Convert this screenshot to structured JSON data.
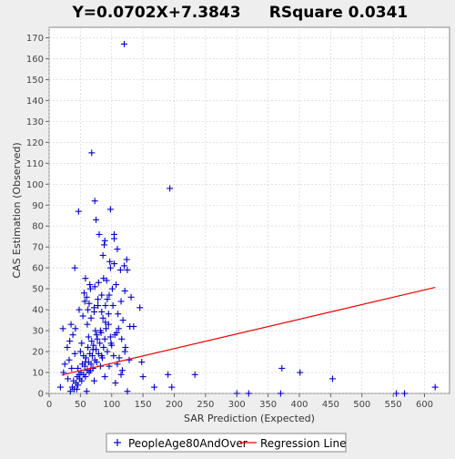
{
  "chart_data": {
    "type": "scatter",
    "title_left": "Y=0.0702X+7.3843",
    "title_right": "RSquare 0.0341",
    "xlabel": "SAR Prediction (Expected)",
    "ylabel": "CAS Estimation (Observed)",
    "xlim": [
      0,
      640
    ],
    "ylim": [
      0,
      175
    ],
    "xticks": [
      0,
      50,
      100,
      150,
      200,
      250,
      300,
      350,
      400,
      450,
      500,
      550,
      600
    ],
    "yticks": [
      0,
      10,
      20,
      30,
      40,
      50,
      60,
      70,
      80,
      90,
      100,
      110,
      120,
      130,
      140,
      150,
      160,
      170
    ],
    "grid": true,
    "legend_position": "bottom",
    "colors": {
      "points": "#0000cc",
      "regression": "#ee0000",
      "plot_bg": "#ffffff",
      "grid": "#d0d0d0"
    },
    "series": [
      {
        "name": "PeopleAge80AndOver",
        "marker": "plus",
        "points": [
          [
            120,
            167
          ],
          [
            68,
            115
          ],
          [
            193,
            98
          ],
          [
            73,
            92
          ],
          [
            98,
            88
          ],
          [
            47,
            87
          ],
          [
            75,
            83
          ],
          [
            80,
            76
          ],
          [
            104,
            76
          ],
          [
            104,
            74
          ],
          [
            89,
            73
          ],
          [
            88,
            71
          ],
          [
            109,
            69
          ],
          [
            86,
            66
          ],
          [
            97,
            63
          ],
          [
            124,
            64
          ],
          [
            120,
            61
          ],
          [
            104,
            62
          ],
          [
            41,
            60
          ],
          [
            98,
            60
          ],
          [
            114,
            59
          ],
          [
            125,
            59
          ],
          [
            58,
            55
          ],
          [
            87,
            55
          ],
          [
            92,
            54
          ],
          [
            79,
            53
          ],
          [
            107,
            52
          ],
          [
            73,
            51
          ],
          [
            66,
            50
          ],
          [
            101,
            50
          ],
          [
            121,
            49
          ],
          [
            56,
            48
          ],
          [
            84,
            47
          ],
          [
            60,
            46
          ],
          [
            131,
            46
          ],
          [
            93,
            45
          ],
          [
            115,
            44
          ],
          [
            64,
            43
          ],
          [
            78,
            42
          ],
          [
            102,
            42
          ],
          [
            145,
            41
          ],
          [
            48,
            40
          ],
          [
            72,
            39
          ],
          [
            110,
            38
          ],
          [
            54,
            37
          ],
          [
            86,
            36
          ],
          [
            118,
            35
          ],
          [
            35,
            33
          ],
          [
            61,
            33
          ],
          [
            95,
            33
          ],
          [
            135,
            32
          ],
          [
            129,
            32
          ],
          [
            42,
            31
          ],
          [
            74,
            30
          ],
          [
            22,
            31
          ],
          [
            108,
            29
          ],
          [
            38,
            28
          ],
          [
            63,
            27
          ],
          [
            89,
            26
          ],
          [
            33,
            25
          ],
          [
            52,
            24
          ],
          [
            100,
            23
          ],
          [
            29,
            22
          ],
          [
            70,
            21
          ],
          [
            121,
            20
          ],
          [
            41,
            19
          ],
          [
            84,
            18
          ],
          [
            112,
            17
          ],
          [
            32,
            16
          ],
          [
            58,
            15
          ],
          [
            128,
            16
          ],
          [
            148,
            15
          ],
          [
            25,
            14
          ],
          [
            96,
            13
          ],
          [
            36,
            12
          ],
          [
            66,
            11
          ],
          [
            117,
            11
          ],
          [
            23,
            10
          ],
          [
            48,
            9
          ],
          [
            89,
            8
          ],
          [
            150,
            8
          ],
          [
            30,
            7
          ],
          [
            72,
            6
          ],
          [
            106,
            5
          ],
          [
            18,
            3
          ],
          [
            44,
            2
          ],
          [
            60,
            1
          ],
          [
            125,
            1
          ],
          [
            168,
            3
          ],
          [
            190,
            9
          ],
          [
            196,
            3
          ],
          [
            233,
            9
          ],
          [
            372,
            12
          ],
          [
            401,
            10
          ],
          [
            453,
            7
          ],
          [
            300,
            0
          ],
          [
            319,
            0
          ],
          [
            370,
            0
          ],
          [
            555,
            0
          ],
          [
            568,
            0
          ],
          [
            617,
            3
          ],
          [
            50,
            20
          ],
          [
            55,
            18
          ],
          [
            62,
            22
          ],
          [
            68,
            25
          ],
          [
            76,
            28
          ],
          [
            82,
            30
          ],
          [
            90,
            34
          ],
          [
            95,
            38
          ],
          [
            46,
            12
          ],
          [
            53,
            14
          ],
          [
            59,
            17
          ],
          [
            65,
            19
          ],
          [
            71,
            23
          ],
          [
            77,
            26
          ],
          [
            83,
            29
          ],
          [
            91,
            31
          ],
          [
            98,
            27
          ],
          [
            39,
            6
          ],
          [
            45,
            8
          ],
          [
            51,
            10
          ],
          [
            57,
            13
          ],
          [
            63,
            15
          ],
          [
            69,
            18
          ],
          [
            75,
            21
          ],
          [
            81,
            24
          ],
          [
            87,
            22
          ],
          [
            37,
            3
          ],
          [
            43,
            5
          ],
          [
            49,
            7
          ],
          [
            55,
            9
          ],
          [
            61,
            11
          ],
          [
            67,
            14
          ],
          [
            73,
            16
          ],
          [
            79,
            19
          ],
          [
            85,
            17
          ],
          [
            34,
            1
          ],
          [
            40,
            2
          ],
          [
            46,
            4
          ],
          [
            52,
            6
          ],
          [
            58,
            8
          ],
          [
            64,
            10
          ],
          [
            70,
            12
          ],
          [
            76,
            15
          ],
          [
            82,
            13
          ],
          [
            93,
            20
          ],
          [
            99,
            24
          ],
          [
            105,
            28
          ],
          [
            111,
            31
          ],
          [
            116,
            26
          ],
          [
            122,
            22
          ],
          [
            103,
            18
          ],
          [
            109,
            14
          ],
          [
            115,
            9
          ],
          [
            57,
            44
          ],
          [
            62,
            40
          ],
          [
            67,
            36
          ],
          [
            72,
            41
          ],
          [
            78,
            45
          ],
          [
            84,
            39
          ],
          [
            90,
            42
          ],
          [
            96,
            47
          ],
          [
            65,
            52
          ]
        ]
      }
    ],
    "regression": {
      "name": "Regression Line",
      "slope": 0.0702,
      "intercept": 7.3843,
      "x_range": [
        20,
        617
      ]
    },
    "legend": [
      "PeopleAge80AndOver",
      "Regression Line"
    ]
  }
}
